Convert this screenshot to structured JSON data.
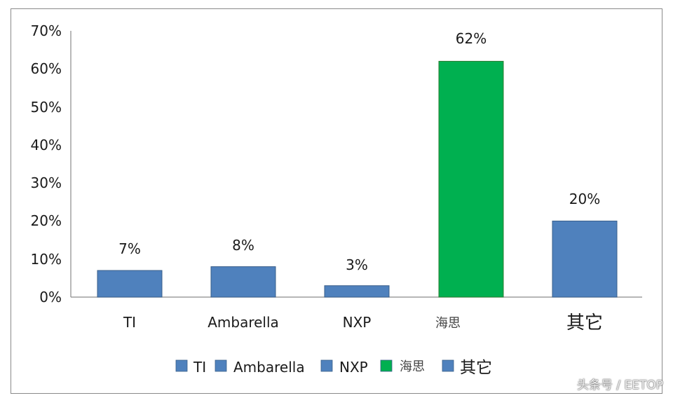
{
  "chart_data": {
    "type": "bar",
    "title": "",
    "xlabel": "",
    "ylabel": "",
    "ylim": [
      0,
      70
    ],
    "yticks": [
      "0%",
      "10%",
      "20%",
      "30%",
      "40%",
      "50%",
      "60%",
      "70%"
    ],
    "categories": [
      "TI",
      "Ambarella",
      "NXP",
      "海思",
      "其它"
    ],
    "values": [
      7,
      8,
      3,
      62,
      20
    ],
    "data_labels": [
      "7%",
      "8%",
      "3%",
      "62%",
      "20%"
    ],
    "bar_colors": [
      "#4f81bd",
      "#4f81bd",
      "#4f81bd",
      "#00b050",
      "#4f81bd"
    ],
    "grid": false,
    "legend": {
      "placement": "bottom",
      "entries": [
        {
          "label": "TI",
          "color": "#4f81bd"
        },
        {
          "label": "Ambarella",
          "color": "#4f81bd"
        },
        {
          "label": "NXP",
          "color": "#4f81bd"
        },
        {
          "label": "海思",
          "color": "#00b050"
        },
        {
          "label": "其它",
          "color": "#4f81bd"
        }
      ]
    }
  },
  "watermark": "头条号 / EETOP"
}
